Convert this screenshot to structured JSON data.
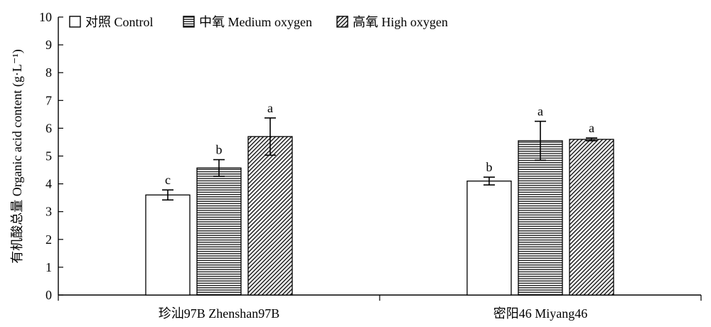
{
  "chart_data": {
    "type": "bar",
    "ylabel": "有机酸总量 Organic acid content (g·L⁻¹)",
    "ylim": [
      0,
      10
    ],
    "yticks": [
      0,
      1,
      2,
      3,
      4,
      5,
      6,
      7,
      8,
      9,
      10
    ],
    "categories": [
      "珍汕97B Zhenshan97B",
      "密阳46 Miyang46"
    ],
    "legend_position": "top-left",
    "series": [
      {
        "name": "对照 Control",
        "pattern": "none",
        "values": [
          3.6,
          4.1
        ],
        "errors": [
          0.18,
          0.14
        ],
        "letters": [
          "c",
          "b"
        ]
      },
      {
        "name": "中氧 Medium oxygen",
        "pattern": "horizontal",
        "values": [
          4.57,
          5.55
        ],
        "errors": [
          0.3,
          0.7
        ],
        "letters": [
          "b",
          "a"
        ]
      },
      {
        "name": "高氧 High oxygen",
        "pattern": "diagonal",
        "values": [
          5.7,
          5.6
        ],
        "errors": [
          0.67,
          0.05
        ],
        "letters": [
          "a",
          "a"
        ]
      }
    ]
  }
}
